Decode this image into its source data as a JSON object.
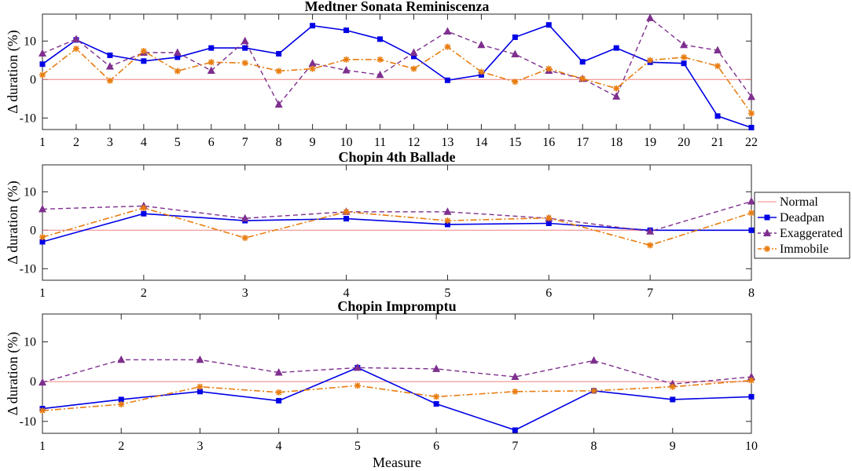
{
  "chart_data": [
    {
      "type": "line",
      "title": "Medtner Sonata Reminiscenza",
      "xlabel": "",
      "ylabel": "Δ duration (%)",
      "x": [
        1,
        2,
        3,
        4,
        5,
        6,
        7,
        8,
        9,
        10,
        11,
        12,
        13,
        14,
        15,
        16,
        17,
        18,
        19,
        20,
        21,
        22
      ],
      "xlim": [
        1,
        22
      ],
      "ylim": [
        -13,
        17
      ],
      "yticks": [
        -10,
        0,
        10
      ],
      "series": [
        {
          "name": "Normal",
          "values": [
            0,
            0,
            0,
            0,
            0,
            0,
            0,
            0,
            0,
            0,
            0,
            0,
            0,
            0,
            0,
            0,
            0,
            0,
            0,
            0,
            0,
            0
          ]
        },
        {
          "name": "Deadpan",
          "values": [
            4,
            10.3,
            6.3,
            4.8,
            5.8,
            8.2,
            8.2,
            6.7,
            14,
            12.8,
            10.5,
            6,
            -0.2,
            1.2,
            11,
            14.2,
            4.6,
            8.2,
            4.5,
            4.2,
            -9.5,
            -12.5
          ]
        },
        {
          "name": "Exaggerated",
          "values": [
            6.8,
            10.5,
            3.4,
            7,
            7,
            2.3,
            10,
            -6.5,
            4.2,
            2.4,
            1.2,
            7,
            12.5,
            9,
            6.6,
            2.3,
            0.2,
            -4.4,
            16,
            9,
            7.6,
            -4.5
          ]
        },
        {
          "name": "Immobile",
          "values": [
            1.2,
            8,
            -0.3,
            7.4,
            2.2,
            4.5,
            4.3,
            2.2,
            2.8,
            5.2,
            5.2,
            2.8,
            8.5,
            2,
            -0.6,
            2.8,
            0.2,
            -2.3,
            5,
            5.8,
            3.5,
            -8.8
          ]
        }
      ]
    },
    {
      "type": "line",
      "title": "Chopin 4th Ballade",
      "xlabel": "",
      "ylabel": "Δ duration (%)",
      "x": [
        1,
        2,
        3,
        4,
        5,
        6,
        7,
        8
      ],
      "xlim": [
        1,
        8
      ],
      "ylim": [
        -13,
        17
      ],
      "yticks": [
        -10,
        0,
        10
      ],
      "series": [
        {
          "name": "Normal",
          "values": [
            0,
            0,
            0,
            0,
            0,
            0,
            0,
            0
          ]
        },
        {
          "name": "Deadpan",
          "values": [
            -3,
            4.3,
            2.5,
            3,
            1.5,
            1.8,
            0,
            0
          ]
        },
        {
          "name": "Exaggerated",
          "values": [
            5.5,
            6.3,
            3.1,
            4.8,
            4.8,
            3.1,
            -0.3,
            7.5
          ]
        },
        {
          "name": "Immobile",
          "values": [
            -1.8,
            5.8,
            -2,
            4.8,
            2.5,
            3.2,
            -3.9,
            4.5
          ]
        }
      ]
    },
    {
      "type": "line",
      "title": "Chopin Impromptu",
      "xlabel": "Measure",
      "ylabel": "Δ duration (%)",
      "x": [
        1,
        2,
        3,
        4,
        5,
        6,
        7,
        8,
        9,
        10
      ],
      "xlim": [
        1,
        10
      ],
      "ylim": [
        -13,
        17
      ],
      "yticks": [
        -10,
        0,
        10
      ],
      "series": [
        {
          "name": "Normal",
          "values": [
            0,
            0,
            0,
            0,
            0,
            0,
            0,
            0,
            0,
            0
          ]
        },
        {
          "name": "Deadpan",
          "values": [
            -6.8,
            -4.5,
            -2.5,
            -4.8,
            3.5,
            -5.6,
            -12.2,
            -2.3,
            -4.5,
            -3.8
          ]
        },
        {
          "name": "Exaggerated",
          "values": [
            -0.2,
            5.5,
            5.5,
            2.3,
            3.5,
            3.2,
            1.2,
            5.3,
            -0.6,
            1.2
          ]
        },
        {
          "name": "Immobile",
          "values": [
            -7.3,
            -5.7,
            -1.3,
            -2.7,
            -1,
            -3.8,
            -2.5,
            -2.3,
            -1.3,
            0.3
          ]
        }
      ]
    }
  ],
  "legend": {
    "position": "right-middle",
    "entries": [
      "Normal",
      "Deadpan",
      "Exaggerated",
      "Immobile"
    ]
  },
  "colors": {
    "Normal": "#f08080",
    "Deadpan": "#0000e6",
    "Exaggerated": "#7e2f8e",
    "Immobile": "#e87d10"
  },
  "styles": {
    "Normal": {
      "dash": "solid",
      "marker": "none"
    },
    "Deadpan": {
      "dash": "solid",
      "marker": "square"
    },
    "Exaggerated": {
      "dash": "dashed",
      "marker": "triangle"
    },
    "Immobile": {
      "dash": "dashdot",
      "marker": "asterisk"
    }
  }
}
